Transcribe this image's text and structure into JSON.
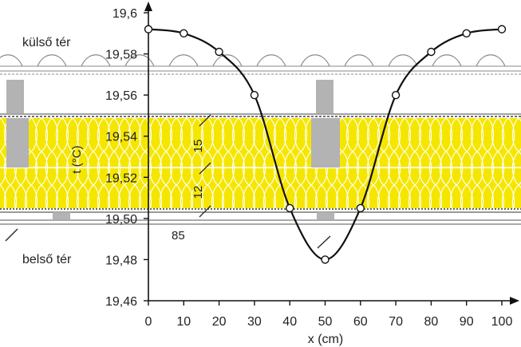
{
  "chart_data": {
    "type": "line",
    "title": "",
    "xlabel": "x (cm)",
    "ylabel": "t (°C)",
    "x": [
      0,
      10,
      20,
      30,
      40,
      50,
      60,
      70,
      80,
      90,
      100
    ],
    "series": [
      {
        "values": [
          19.592,
          19.59,
          19.581,
          19.56,
          19.505,
          19.48,
          19.505,
          19.56,
          19.581,
          19.59,
          19.592
        ]
      }
    ],
    "xlim": [
      0,
      100
    ],
    "ylim": [
      19.46,
      19.6
    ],
    "x_ticks": [
      0,
      10,
      20,
      30,
      40,
      50,
      60,
      70,
      80,
      90,
      100
    ],
    "y_ticks": [
      "19,46",
      "19,48",
      "19,50",
      "19,52",
      "19,54",
      "19,56",
      "19,58",
      "19,6"
    ],
    "line_color": "#111111",
    "marker": "open-circle",
    "grid": false
  },
  "background": {
    "label_outside": "külső tér",
    "label_inside": "belső tér",
    "dim_upper": "15",
    "dim_lower": "12",
    "dim_spacing": "85",
    "insulation_color": "#f5e600",
    "rafter_color": "#b3b3b3"
  }
}
